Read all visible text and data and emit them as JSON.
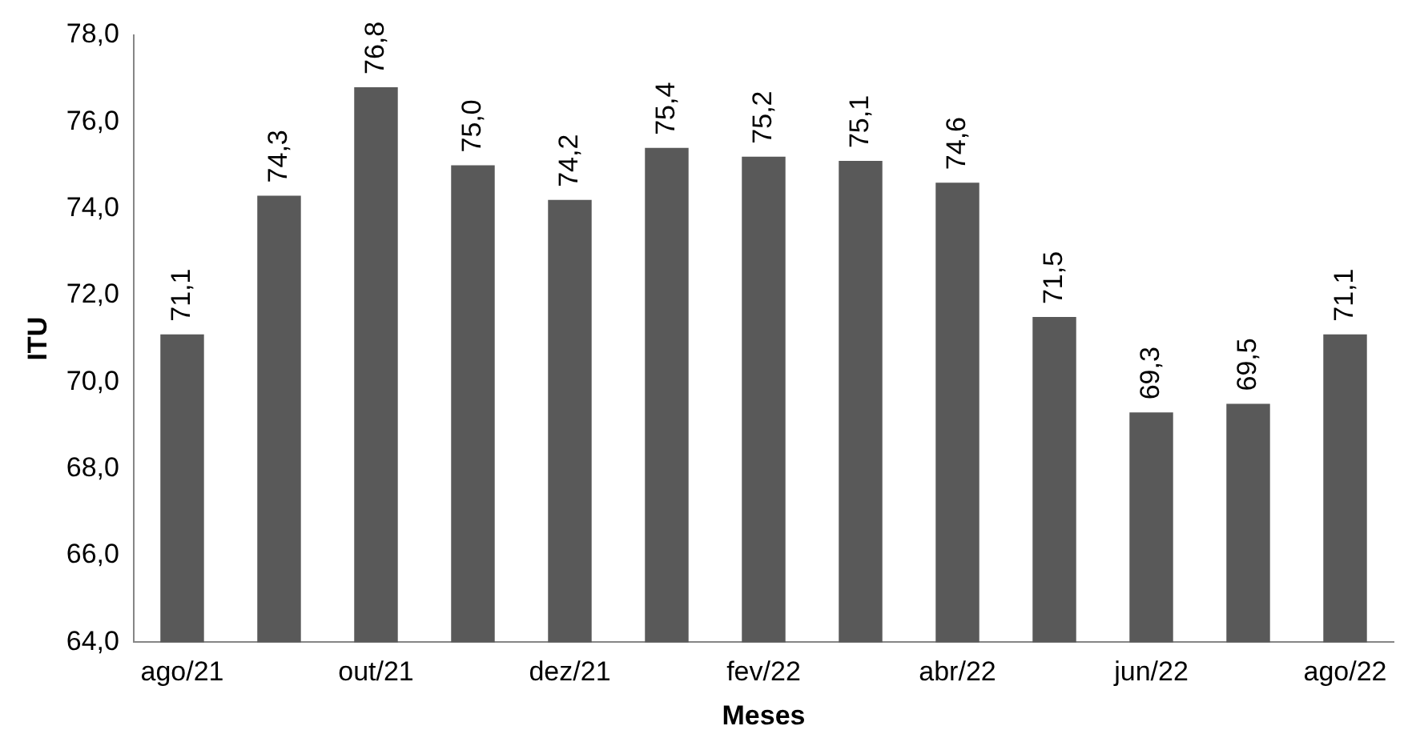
{
  "chart_data": {
    "type": "bar",
    "xlabel": "Meses",
    "ylabel": "ITU",
    "categories": [
      "ago/21",
      null,
      "out/21",
      null,
      "dez/21",
      null,
      "fev/22",
      null,
      "abr/22",
      null,
      "jun/22",
      null,
      "ago/22"
    ],
    "values": [
      71.1,
      74.3,
      76.8,
      75.0,
      74.2,
      75.4,
      75.2,
      75.1,
      74.6,
      71.5,
      69.3,
      69.5,
      71.1
    ],
    "value_labels": [
      "71,1",
      "74,3",
      "76,8",
      "75,0",
      "74,2",
      "75,4",
      "75,2",
      "75,1",
      "74,6",
      "71,5",
      "69,3",
      "69,5",
      "71,1"
    ],
    "color": "#595959",
    "ylim": [
      64,
      78
    ],
    "yticks": [
      {
        "value": 64,
        "label": "64,0"
      },
      {
        "value": 66,
        "label": "66,0"
      },
      {
        "value": 68,
        "label": "68,0"
      },
      {
        "value": 70,
        "label": "70,0"
      },
      {
        "value": 72,
        "label": "72,0"
      },
      {
        "value": 74,
        "label": "74,0"
      },
      {
        "value": 76,
        "label": "76,0"
      },
      {
        "value": 78,
        "label": "78,0"
      }
    ],
    "grid": false,
    "legend": false
  }
}
